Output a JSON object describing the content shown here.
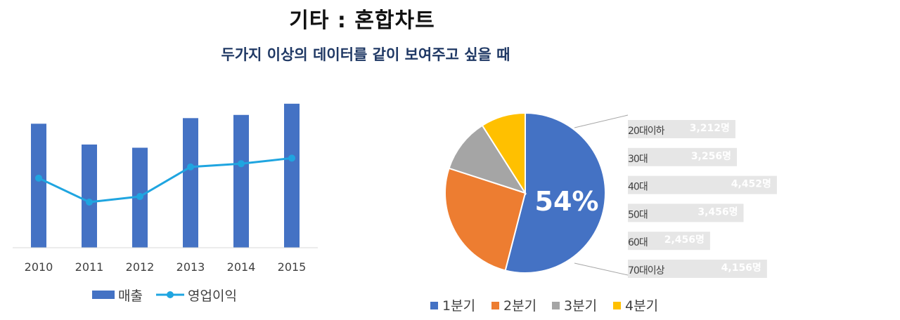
{
  "header": {
    "title": "기타 : 혼합차트",
    "subtitle": "두가지 이상의 데이터를 같이 보여주고 싶을 때"
  },
  "chart_data": [
    {
      "type": "bar",
      "categories": [
        "2010",
        "2011",
        "2012",
        "2013",
        "2014",
        "2015"
      ],
      "series": [
        {
          "name": "매출",
          "type": "bar",
          "color": "#4472C4",
          "values": [
            155,
            129,
            125,
            162,
            166,
            180
          ]
        },
        {
          "name": "영업이익",
          "type": "line",
          "color": "#1FA5E0",
          "values": [
            87,
            57,
            64,
            101,
            105,
            112
          ]
        }
      ],
      "ylim": [
        0,
        200
      ],
      "grid": false,
      "legend": "bottom"
    },
    {
      "type": "pie",
      "categories": [
        "1분기",
        "2분기",
        "3분기",
        "4분기"
      ],
      "values": [
        54,
        26,
        11,
        9
      ],
      "colors": [
        "#4472C4",
        "#ED7D31",
        "#A5A5A5",
        "#FFC000"
      ],
      "center_label": "54%",
      "legend": "bottom"
    },
    {
      "type": "bar",
      "orientation": "horizontal",
      "categories": [
        "20대이하",
        "30대",
        "40대",
        "50대",
        "60대",
        "70대이상"
      ],
      "values": [
        3212,
        3256,
        4452,
        3456,
        2456,
        4156
      ],
      "labels": [
        "3,212명",
        "3,256명",
        "4,452명",
        "3,456명",
        "2,456명",
        "4,156명"
      ],
      "color": "#E6E6E6"
    }
  ]
}
